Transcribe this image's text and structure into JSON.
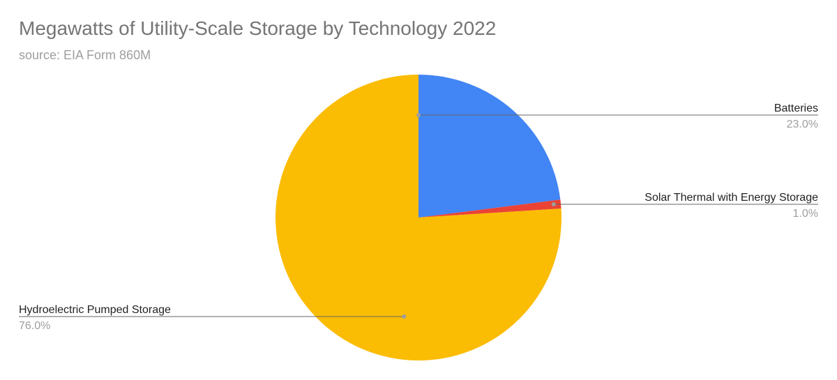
{
  "chart_data": {
    "type": "pie",
    "title": "Megawatts of Utility-Scale Storage by Technology 2022",
    "subtitle": "source: EIA Form 860M",
    "slices": [
      {
        "label": "Batteries",
        "value": 23.0,
        "pct_label": "23.0%",
        "color": "#4285F4"
      },
      {
        "label": "Solar Thermal with Energy Storage",
        "value": 1.0,
        "pct_label": "1.0%",
        "color": "#EA4335"
      },
      {
        "label": "Hydroelectric Pumped Storage",
        "value": 76.0,
        "pct_label": "76.0%",
        "color": "#FBBC04"
      }
    ],
    "legend": "none",
    "labels": "outside-with-leader-lines"
  }
}
